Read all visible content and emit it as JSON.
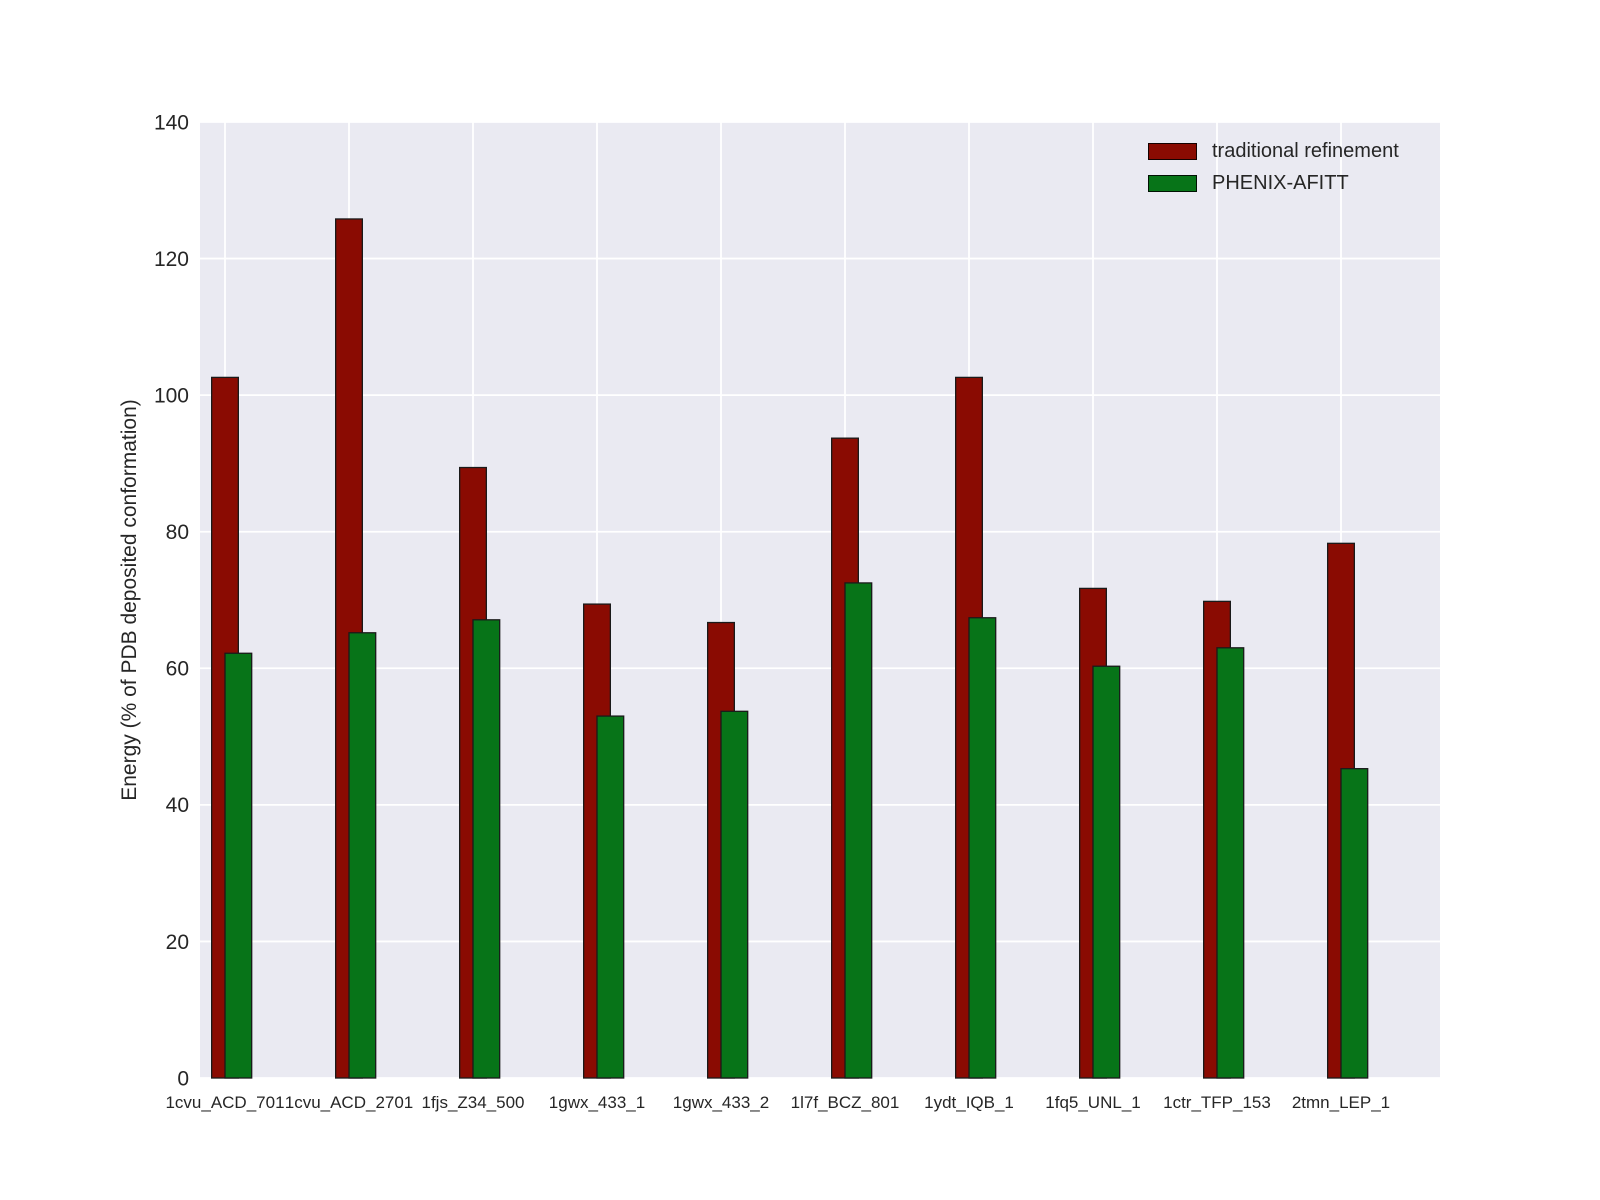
{
  "chart_data": {
    "type": "bar",
    "title": "",
    "xlabel": "",
    "ylabel": "Energy (% of PDB deposited conformation)",
    "categories": [
      "1cvu_ACD_701",
      "1cvu_ACD_2701",
      "1fjs_Z34_500",
      "1gwx_433_1",
      "1gwx_433_2",
      "1l7f_BCZ_801",
      "1ydt_IQB_1",
      "1fq5_UNL_1",
      "1ctr_TFP_153",
      "2tmn_LEP_1"
    ],
    "series": [
      {
        "name": "traditional refinement",
        "color": "#8A0B02",
        "values": [
          102.6,
          125.8,
          89.4,
          69.4,
          66.7,
          93.7,
          102.6,
          71.7,
          69.8,
          78.3
        ]
      },
      {
        "name": "PHENIX-AFITT",
        "color": "#077418",
        "values": [
          62.2,
          65.2,
          67.1,
          53.0,
          53.7,
          72.5,
          67.4,
          60.3,
          63.0,
          45.3
        ]
      }
    ],
    "ylim": [
      0,
      140
    ],
    "yticks": [
      0,
      20,
      40,
      60,
      80,
      100,
      120,
      140
    ],
    "grid": true,
    "legend_position": "upper right",
    "colors": {
      "plot_background": "#EAEAF2",
      "gridline": "#FFFFFF",
      "bar_edge": "#1A1A1A",
      "text": "#262626",
      "page_background": "#FFFFFF"
    }
  }
}
